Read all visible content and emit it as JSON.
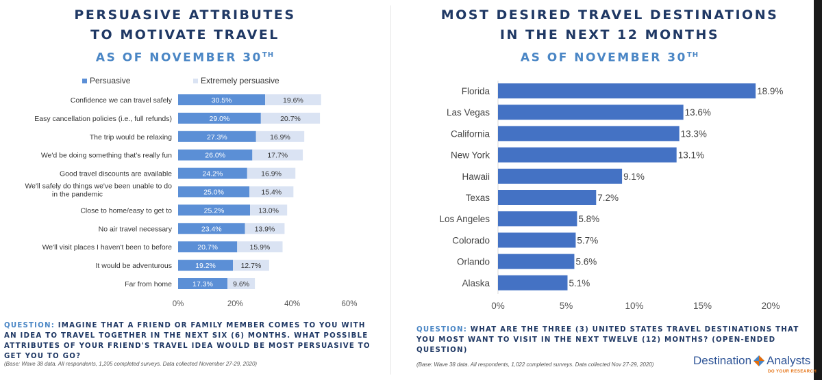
{
  "left": {
    "title_line1": "PERSUASIVE ATTRIBUTES",
    "title_line2": "TO MOTIVATE TRAVEL",
    "asof": "AS OF NOVEMBER 30",
    "asof_sup": "TH",
    "question_label": "QUESTION:",
    "question_text": "Imagine that a friend or family member comes to you with an idea to travel together in the next six (6) months. What possible attributes of your friend's travel idea would be most persuasive to get you to go?",
    "base": "(Base: Wave 38 data. All respondents, 1,205 completed surveys. Data collected November 27-29, 2020)"
  },
  "right": {
    "title_line1": "MOST DESIRED TRAVEL DESTINATIONS",
    "title_line2": "IN THE NEXT 12 MONTHS",
    "asof": "AS OF NOVEMBER 30",
    "asof_sup": "TH",
    "question_label": "QUESTION:",
    "question_text": "What are the three (3) United States travel destinations that you most want to visit in the next twelve (12) months? (Open-ended question)",
    "base": "(Base: Wave 38 data. All respondents, 1,022 completed surveys. Data collected Nov 27-29, 2020)"
  },
  "logo": {
    "word1": "Destination",
    "word2": "Analysts",
    "tagline": "DO YOUR RESEARCH"
  },
  "colors": {
    "persuasive": "#5b8fd6",
    "extremely": "#dae3f3",
    "destination": "#4472c4",
    "title": "#1f3864",
    "accent": "#4a86c5"
  },
  "chart_data": [
    {
      "type": "bar",
      "orientation": "horizontal",
      "stacked": true,
      "categories": [
        "Confidence we can travel safely",
        "Easy cancellation policies (i.e., full refunds)",
        "The trip would be relaxing",
        "We'd be doing something that's really fun",
        "Good travel discounts are available",
        "We'll safely do things we've been unable to do in the pandemic",
        "Close to home/easy to get to",
        "No air travel necessary",
        "We'll visit places I haven't been to before",
        "It would be adventurous",
        "Far from home"
      ],
      "series": [
        {
          "name": "Persuasive",
          "values": [
            30.5,
            29.0,
            27.3,
            26.0,
            24.2,
            25.0,
            25.2,
            23.4,
            20.7,
            19.2,
            17.3
          ],
          "labels": [
            "30.5%",
            "29.0%",
            "27.3%",
            "26.0%",
            "24.2%",
            "25.0%",
            "25.2%",
            "23.4%",
            "20.7%",
            "19.2%",
            "17.3%"
          ]
        },
        {
          "name": "Extremely persuasive",
          "values": [
            19.6,
            20.7,
            16.9,
            17.7,
            16.9,
            15.4,
            13.0,
            13.9,
            15.9,
            12.7,
            9.6
          ],
          "labels": [
            "19.6%",
            "20.7%",
            "16.9%",
            "17.7%",
            "16.9%",
            "15.4%",
            "13.0%",
            "13.9%",
            "15.9%",
            "12.7%",
            "9.6%"
          ]
        }
      ],
      "xlim": [
        0,
        60
      ],
      "xticks": [
        "0%",
        "20%",
        "40%",
        "60%"
      ],
      "legend": "top"
    },
    {
      "type": "bar",
      "orientation": "horizontal",
      "categories": [
        "Florida",
        "Las Vegas",
        "California",
        "New York",
        "Hawaii",
        "Texas",
        "Los Angeles",
        "Colorado",
        "Orlando",
        "Alaska"
      ],
      "values": [
        18.9,
        13.6,
        13.3,
        13.1,
        9.1,
        7.2,
        5.8,
        5.7,
        5.6,
        5.1
      ],
      "labels": [
        "18.9%",
        "13.6%",
        "13.3%",
        "13.1%",
        "9.1%",
        "7.2%",
        "5.8%",
        "5.7%",
        "5.6%",
        "5.1%"
      ],
      "xlim": [
        0,
        20
      ],
      "xticks": [
        "0%",
        "5%",
        "10%",
        "15%",
        "20%"
      ]
    }
  ]
}
